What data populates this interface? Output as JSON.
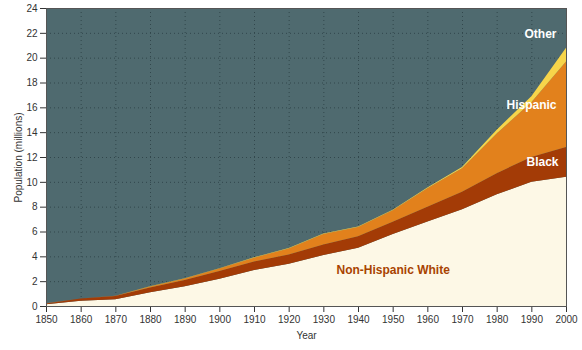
{
  "chart_data": {
    "type": "area",
    "stacked": true,
    "x": [
      1850,
      1860,
      1870,
      1880,
      1890,
      1900,
      1910,
      1920,
      1930,
      1940,
      1950,
      1960,
      1970,
      1980,
      1990,
      2000
    ],
    "xlim": [
      1850,
      2000
    ],
    "xticks": [
      1850,
      1860,
      1870,
      1880,
      1890,
      1900,
      1910,
      1920,
      1930,
      1940,
      1950,
      1960,
      1970,
      1980,
      1990,
      2000
    ],
    "ylim": [
      0,
      24
    ],
    "yticks": [
      0,
      2,
      4,
      6,
      8,
      10,
      12,
      14,
      16,
      18,
      20,
      22,
      24
    ],
    "x_label": "Year",
    "y_label": "Population (millions)",
    "grid": true,
    "series": [
      {
        "name": "Non-Hispanic White",
        "color": "#fdf8e6",
        "values": [
          0.15,
          0.42,
          0.55,
          1.1,
          1.6,
          2.2,
          2.9,
          3.4,
          4.1,
          4.7,
          5.8,
          6.8,
          7.8,
          9.0,
          10.0,
          10.4
        ]
      },
      {
        "name": "Black",
        "color": "#a33b06",
        "values": [
          0.06,
          0.18,
          0.25,
          0.39,
          0.49,
          0.62,
          0.69,
          0.74,
          0.85,
          0.92,
          0.98,
          1.19,
          1.4,
          1.7,
          2.0,
          2.4
        ]
      },
      {
        "name": "Hispanic",
        "color": "#e2811c",
        "values": [
          0.01,
          0.01,
          0.02,
          0.08,
          0.12,
          0.2,
          0.3,
          0.5,
          0.85,
          0.75,
          0.93,
          1.5,
          1.9,
          3.2,
          4.4,
          6.9
        ]
      },
      {
        "name": "Other",
        "color": "#f7d54a",
        "values": [
          0.0,
          0.0,
          0.0,
          0.02,
          0.03,
          0.03,
          0.03,
          0.03,
          0.03,
          0.04,
          0.04,
          0.05,
          0.1,
          0.3,
          0.5,
          1.1
        ]
      }
    ]
  }
}
